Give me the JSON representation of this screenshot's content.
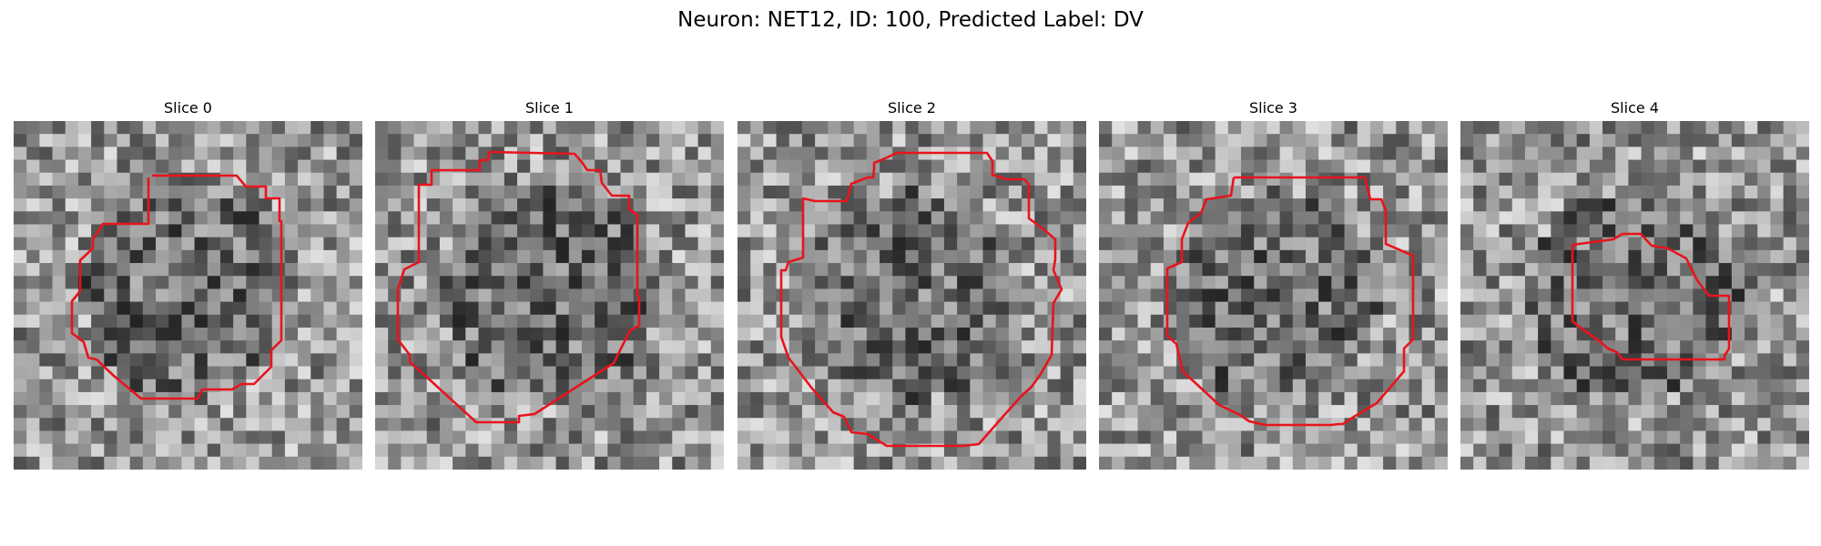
{
  "figure": {
    "title": "Neuron: NET12, ID: 100, Predicted Label: DV"
  },
  "panels": [
    {
      "title": "Slice 0",
      "seed": 11,
      "contour_color": "#e8141c",
      "image": "grayscale-noise-micrograph"
    },
    {
      "title": "Slice 1",
      "seed": 23,
      "contour_color": "#e8141c",
      "image": "grayscale-noise-micrograph"
    },
    {
      "title": "Slice 2",
      "seed": 37,
      "contour_color": "#e8141c",
      "image": "grayscale-noise-micrograph"
    },
    {
      "title": "Slice 3",
      "seed": 41,
      "contour_color": "#e8141c",
      "image": "grayscale-noise-micrograph"
    },
    {
      "title": "Slice 4",
      "seed": 53,
      "contour_color": "#e8141c",
      "image": "grayscale-noise-micrograph"
    }
  ]
}
